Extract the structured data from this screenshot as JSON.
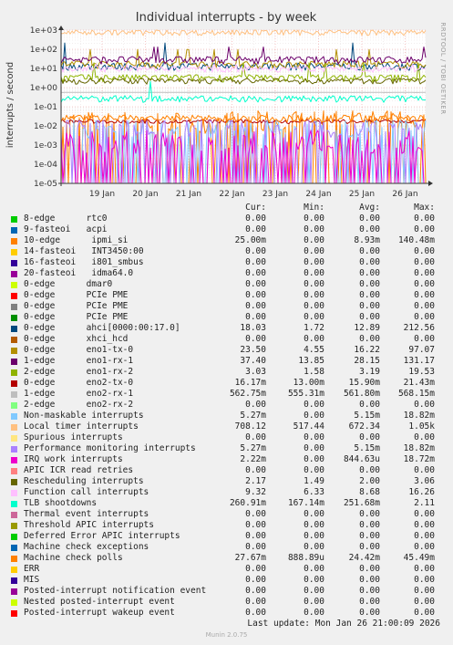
{
  "chart_data": {
    "type": "line",
    "title": "Individual interrupts - by week",
    "ylabel": "interrupts / second",
    "side_label": "RRDTOOL / TOBI OETIKER",
    "yscale": "log",
    "ylim": [
      1e-05,
      1000
    ],
    "yticks": [
      "1e+03",
      "1e+02",
      "1e+01",
      "1e+00",
      "1e-01",
      "1e-02",
      "1e-03",
      "1e-04",
      "1e-05"
    ],
    "xticks": [
      "19 Jan",
      "20 Jan",
      "21 Jan",
      "22 Jan",
      "23 Jan",
      "24 Jan",
      "25 Jan",
      "26 Jan"
    ],
    "grid": true,
    "columns": [
      "Cur:",
      "Min:",
      "Avg:",
      "Max:"
    ],
    "series": [
      {
        "name": "8-edge      rtc0",
        "color": "#00cc00",
        "cur": "0.00",
        "min": "0.00",
        "avg": "0.00",
        "max": "0.00"
      },
      {
        "name": "9-fasteoi   acpi",
        "color": "#0066b3",
        "cur": "0.00",
        "min": "0.00",
        "avg": "0.00",
        "max": "0.00"
      },
      {
        "name": "10-edge      ipmi_si",
        "color": "#ff8000",
        "cur": "25.00m",
        "min": "0.00",
        "avg": "8.93m",
        "max": "140.48m"
      },
      {
        "name": "14-fasteoi   INT3450:00",
        "color": "#ffcc00",
        "cur": "0.00",
        "min": "0.00",
        "avg": "0.00",
        "max": "0.00"
      },
      {
        "name": "16-fasteoi   i801_smbus",
        "color": "#330099",
        "cur": "0.00",
        "min": "0.00",
        "avg": "0.00",
        "max": "0.00"
      },
      {
        "name": "20-fasteoi   idma64.0",
        "color": "#990099",
        "cur": "0.00",
        "min": "0.00",
        "avg": "0.00",
        "max": "0.00"
      },
      {
        "name": "0-edge      dmar0",
        "color": "#ccff00",
        "cur": "0.00",
        "min": "0.00",
        "avg": "0.00",
        "max": "0.00"
      },
      {
        "name": "0-edge      PCIe PME",
        "color": "#ff0000",
        "cur": "0.00",
        "min": "0.00",
        "avg": "0.00",
        "max": "0.00"
      },
      {
        "name": "0-edge      PCIe PME",
        "color": "#808080",
        "cur": "0.00",
        "min": "0.00",
        "avg": "0.00",
        "max": "0.00"
      },
      {
        "name": "0-edge      PCIe PME",
        "color": "#008f00",
        "cur": "0.00",
        "min": "0.00",
        "avg": "0.00",
        "max": "0.00"
      },
      {
        "name": "0-edge      ahci[0000:00:17.0]",
        "color": "#00487d",
        "cur": "18.03",
        "min": "1.72",
        "avg": "12.89",
        "max": "212.56"
      },
      {
        "name": "0-edge      xhci_hcd",
        "color": "#b35a00",
        "cur": "0.00",
        "min": "0.00",
        "avg": "0.00",
        "max": "0.00"
      },
      {
        "name": "0-edge      eno1-tx-0",
        "color": "#b38f00",
        "cur": "23.50",
        "min": "4.55",
        "avg": "16.22",
        "max": "97.07"
      },
      {
        "name": "1-edge      eno1-rx-1",
        "color": "#6b006b",
        "cur": "37.40",
        "min": "13.85",
        "avg": "28.15",
        "max": "131.17"
      },
      {
        "name": "2-edge      eno1-rx-2",
        "color": "#8fb300",
        "cur": "3.03",
        "min": "1.58",
        "avg": "3.19",
        "max": "19.53"
      },
      {
        "name": "0-edge      eno2-tx-0",
        "color": "#b30000",
        "cur": "16.17m",
        "min": "13.00m",
        "avg": "15.90m",
        "max": "21.43m"
      },
      {
        "name": "1-edge      eno2-rx-1",
        "color": "#bebebe",
        "cur": "562.75m",
        "min": "555.31m",
        "avg": "561.80m",
        "max": "568.15m"
      },
      {
        "name": "2-edge      eno2-rx-2",
        "color": "#80ff80",
        "cur": "0.00",
        "min": "0.00",
        "avg": "0.00",
        "max": "0.00"
      },
      {
        "name": "Non-maskable interrupts",
        "color": "#80c9ff",
        "cur": "5.27m",
        "min": "0.00",
        "avg": "5.15m",
        "max": "18.82m"
      },
      {
        "name": "Local timer interrupts",
        "color": "#ffc080",
        "cur": "708.12",
        "min": "517.44",
        "avg": "672.34",
        "max": "1.05k"
      },
      {
        "name": "Spurious interrupts",
        "color": "#ffe680",
        "cur": "0.00",
        "min": "0.00",
        "avg": "0.00",
        "max": "0.00"
      },
      {
        "name": "Performance monitoring interrupts",
        "color": "#aa80ff",
        "cur": "5.27m",
        "min": "0.00",
        "avg": "5.15m",
        "max": "18.82m"
      },
      {
        "name": "IRQ work interrupts",
        "color": "#ee00cc",
        "cur": "2.22m",
        "min": "0.00",
        "avg": "844.63u",
        "max": "18.72m"
      },
      {
        "name": "APIC ICR read retries",
        "color": "#ff8080",
        "cur": "0.00",
        "min": "0.00",
        "avg": "0.00",
        "max": "0.00"
      },
      {
        "name": "Rescheduling interrupts",
        "color": "#666600",
        "cur": "2.17",
        "min": "1.49",
        "avg": "2.00",
        "max": "3.06"
      },
      {
        "name": "Function call interrupts",
        "color": "#ffbfff",
        "cur": "9.32",
        "min": "6.33",
        "avg": "8.68",
        "max": "16.26"
      },
      {
        "name": "TLB shootdowns",
        "color": "#00ffcc",
        "cur": "260.91m",
        "min": "167.14m",
        "avg": "251.68m",
        "max": "2.11"
      },
      {
        "name": "Thermal event interrupts",
        "color": "#cc6699",
        "cur": "0.00",
        "min": "0.00",
        "avg": "0.00",
        "max": "0.00"
      },
      {
        "name": "Threshold APIC interrupts",
        "color": "#999900",
        "cur": "0.00",
        "min": "0.00",
        "avg": "0.00",
        "max": "0.00"
      },
      {
        "name": "Deferred Error APIC interrupts",
        "color": "#00cc00",
        "cur": "0.00",
        "min": "0.00",
        "avg": "0.00",
        "max": "0.00"
      },
      {
        "name": "Machine check exceptions",
        "color": "#0066b3",
        "cur": "0.00",
        "min": "0.00",
        "avg": "0.00",
        "max": "0.00"
      },
      {
        "name": "Machine check polls",
        "color": "#ff8000",
        "cur": "27.67m",
        "min": "888.89u",
        "avg": "24.42m",
        "max": "45.49m"
      },
      {
        "name": "ERR",
        "color": "#ffcc00",
        "cur": "0.00",
        "min": "0.00",
        "avg": "0.00",
        "max": "0.00"
      },
      {
        "name": "MIS",
        "color": "#330099",
        "cur": "0.00",
        "min": "0.00",
        "avg": "0.00",
        "max": "0.00"
      },
      {
        "name": "Posted-interrupt notification event",
        "color": "#990099",
        "cur": "0.00",
        "min": "0.00",
        "avg": "0.00",
        "max": "0.00"
      },
      {
        "name": "Nested posted-interrupt event",
        "color": "#ccff00",
        "cur": "0.00",
        "min": "0.00",
        "avg": "0.00",
        "max": "0.00"
      },
      {
        "name": "Posted-interrupt wakeup event",
        "color": "#ff0000",
        "cur": "0.00",
        "min": "0.00",
        "avg": "0.00",
        "max": "0.00"
      }
    ]
  },
  "footer": {
    "last_update": "Last update: Mon Jan 26 21:00:09 2026",
    "munin_version": "Munin 2.0.75"
  }
}
